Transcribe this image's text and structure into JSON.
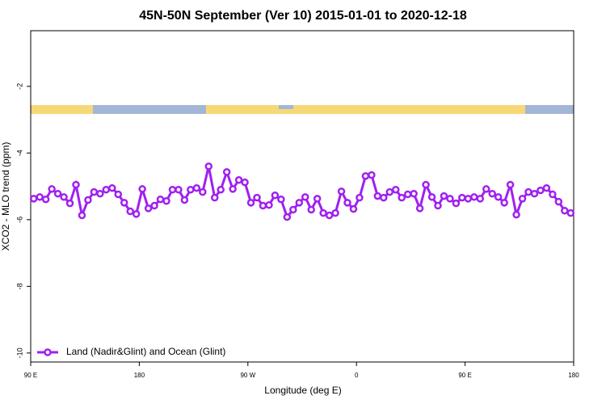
{
  "chart_data": {
    "type": "line",
    "title": "45N-50N September (Ver 10)   2015-01-01 to 2020-12-18",
    "x_label": "Longitude (deg E)",
    "y_label": "XCO2 - MLO trend (ppm)",
    "xlim": [
      90,
      540
    ],
    "ylim": [
      -10.27,
      -0.33
    ],
    "xticks": [
      {
        "value": 90,
        "label": "90 E"
      },
      180,
      {
        "value": 270,
        "label": "90 W"
      },
      {
        "value": 360,
        "label": "0"
      },
      {
        "value": 450,
        "label": "90 E"
      },
      {
        "value": 540,
        "label": "180"
      }
    ],
    "yticks": [
      -2,
      -4,
      -6,
      -8,
      -10
    ],
    "legend": "lower left",
    "x": [
      92.5,
      97.5,
      102.5,
      107.5,
      112.5,
      117.5,
      122.5,
      127.5,
      132.5,
      137.5,
      142.5,
      147.5,
      152.5,
      157.5,
      162.5,
      167.5,
      172.5,
      177.5,
      182.5,
      187.5,
      192.5,
      197.5,
      202.5,
      207.5,
      212.5,
      217.5,
      222.5,
      227.5,
      232.5,
      237.5,
      242.5,
      247.5,
      252.5,
      257.5,
      262.5,
      267.5,
      272.5,
      277.5,
      282.5,
      287.5,
      292.5,
      297.5,
      302.5,
      307.5,
      312.5,
      317.5,
      322.5,
      327.5,
      332.5,
      337.5,
      342.5,
      347.5,
      352.5,
      357.5,
      362.5,
      367.5,
      372.5,
      377.5,
      382.5,
      387.5,
      392.5,
      397.5,
      402.5,
      407.5,
      412.5,
      417.5,
      422.5,
      427.5,
      432.5,
      437.5,
      442.5,
      447.5,
      452.5,
      457.5,
      462.5,
      467.5,
      472.5,
      477.5,
      482.5,
      487.5,
      492.5,
      497.5,
      502.5,
      507.5,
      512.5,
      517.5,
      522.5,
      527.5,
      532.5,
      537.5
    ],
    "series": [
      {
        "name": "Land (Nadir&Glint) and Ocean (Glint)",
        "color": "#a020f0",
        "values": [
          -5.37,
          -5.32,
          -5.39,
          -5.08,
          -5.22,
          -5.32,
          -5.51,
          -4.95,
          -5.87,
          -5.41,
          -5.17,
          -5.22,
          -5.1,
          -5.05,
          -5.24,
          -5.49,
          -5.75,
          -5.83,
          -5.08,
          -5.66,
          -5.58,
          -5.39,
          -5.44,
          -5.1,
          -5.1,
          -5.41,
          -5.1,
          -5.05,
          -5.17,
          -4.4,
          -5.34,
          -5.1,
          -4.57,
          -5.08,
          -4.81,
          -4.88,
          -5.49,
          -5.34,
          -5.58,
          -5.56,
          -5.27,
          -5.39,
          -5.92,
          -5.7,
          -5.49,
          -5.32,
          -5.7,
          -5.37,
          -5.8,
          -5.87,
          -5.8,
          -5.15,
          -5.49,
          -5.68,
          -5.34,
          -4.69,
          -4.66,
          -5.29,
          -5.34,
          -5.17,
          -5.1,
          -5.34,
          -5.24,
          -5.22,
          -5.66,
          -4.95,
          -5.32,
          -5.58,
          -5.29,
          -5.37,
          -5.51,
          -5.34,
          -5.37,
          -5.32,
          -5.37,
          -5.08,
          -5.22,
          -5.32,
          -5.49,
          -4.95,
          -5.85,
          -5.37,
          -5.17,
          -5.22,
          -5.12,
          -5.05,
          -5.24,
          -5.46,
          -5.73,
          -5.8
        ]
      }
    ]
  }
}
